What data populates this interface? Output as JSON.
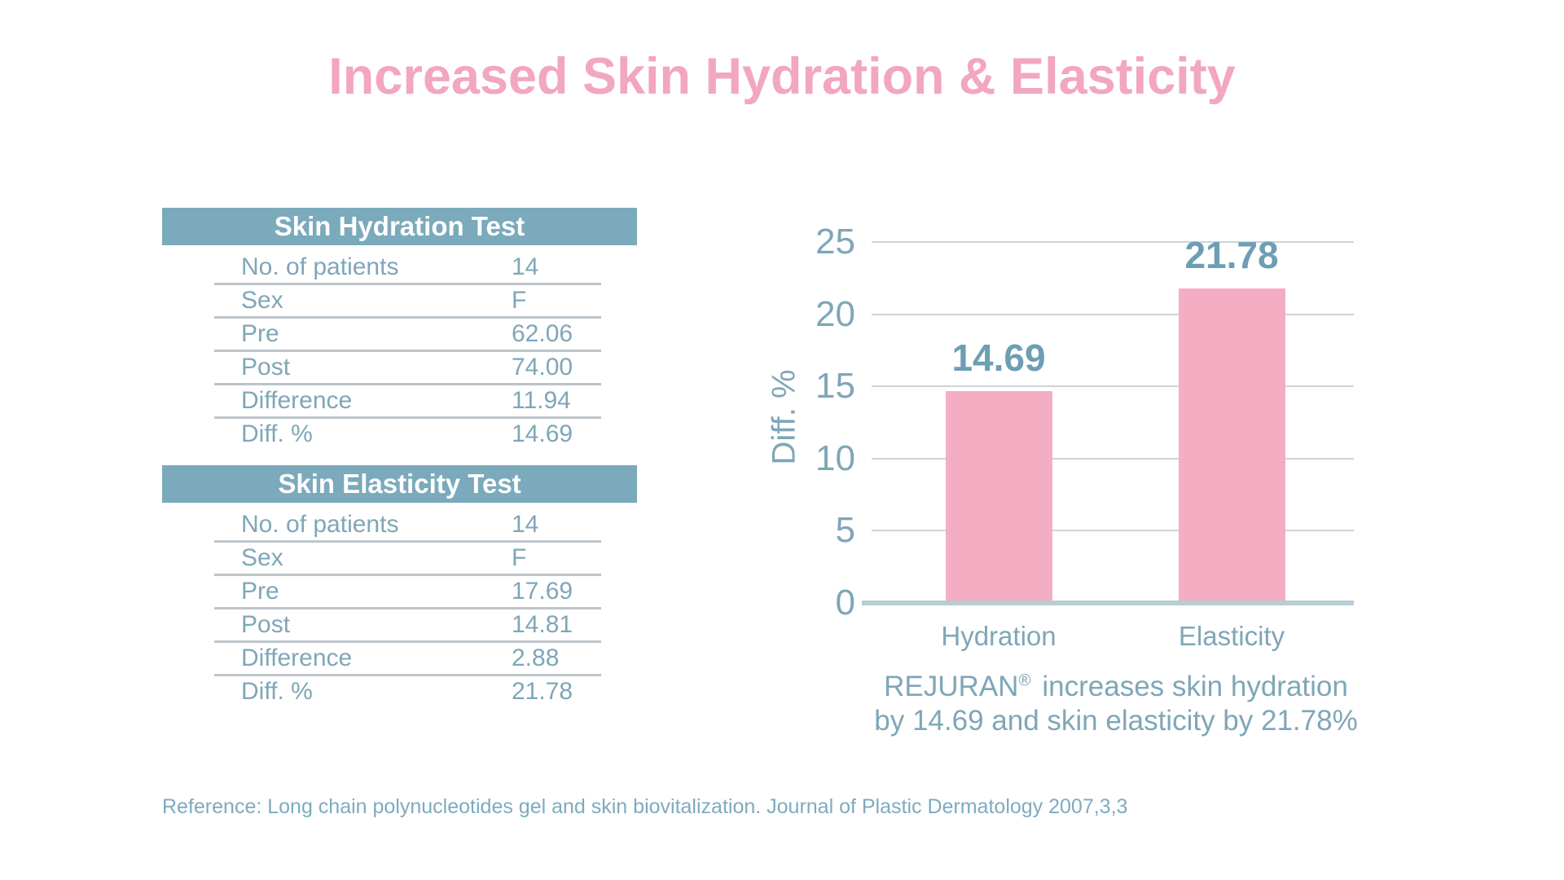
{
  "title": "Increased Skin Hydration & Elasticity",
  "tables": [
    {
      "header": "Skin Hydration Test",
      "rows": [
        {
          "label": "No. of patients",
          "value": "14"
        },
        {
          "label": "Sex",
          "value": "F"
        },
        {
          "label": "Pre",
          "value": "62.06"
        },
        {
          "label": "Post",
          "value": "74.00"
        },
        {
          "label": "Difference",
          "value": "11.94"
        },
        {
          "label": "Diff. %",
          "value": "14.69"
        }
      ]
    },
    {
      "header": "Skin Elasticity Test",
      "rows": [
        {
          "label": "No. of patients",
          "value": "14"
        },
        {
          "label": "Sex",
          "value": "F"
        },
        {
          "label": "Pre",
          "value": "17.69"
        },
        {
          "label": "Post",
          "value": "14.81"
        },
        {
          "label": "Difference",
          "value": "2.88"
        },
        {
          "label": "Diff. %",
          "value": "21.78"
        }
      ]
    }
  ],
  "chart_data": {
    "type": "bar",
    "categories": [
      "Hydration",
      "Elasticity"
    ],
    "values": [
      14.69,
      21.78
    ],
    "value_labels": [
      "14.69",
      "21.78"
    ],
    "title": "",
    "xlabel": "",
    "ylabel": "Diff. %",
    "ylim": [
      0,
      25
    ],
    "yticks": [
      0,
      5,
      10,
      15,
      20,
      25
    ],
    "grid": "horizontal",
    "legend": "none",
    "bar_color": "#F4AEC4"
  },
  "caption": {
    "brand": "REJURAN",
    "reg": "®",
    "line1_rest": "increases skin hydration",
    "line2": "by 14.69 and skin elasticity by 21.78%"
  },
  "reference": "Reference: Long chain polynucleotides gel and skin biovitalization. Journal of Plastic Dermatology 2007,3,3",
  "colors": {
    "title_pink": "#F2A6C1",
    "header_teal": "#7AAABB",
    "text_teal": "#7FA6B8",
    "value_teal": "#6D9EB4",
    "bar_pink": "#F4AEC4",
    "gridline": "#CDD4D9",
    "baseline": "#B7CCD6"
  }
}
